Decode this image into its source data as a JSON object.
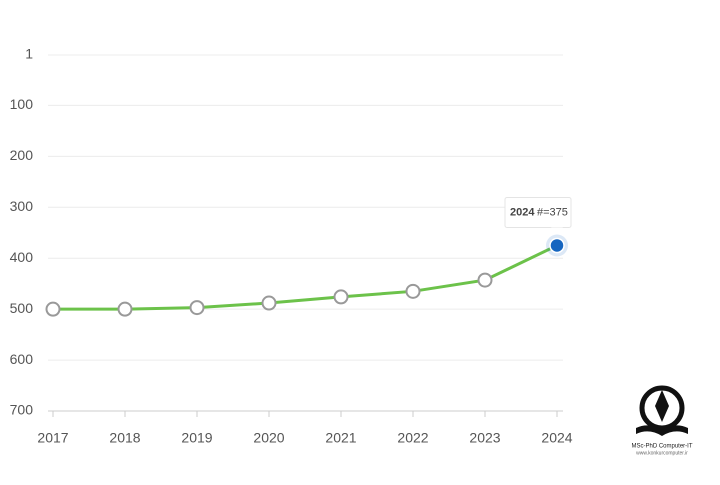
{
  "chart_data": {
    "type": "line",
    "categories": [
      "2017",
      "2018",
      "2019",
      "2020",
      "2021",
      "2022",
      "2023",
      "2024"
    ],
    "series": [
      {
        "color": "#6cc24a",
        "values": [
          500,
          500,
          497,
          488,
          476,
          465,
          443,
          375
        ],
        "value_labels": [
          null,
          null,
          null,
          null,
          null,
          null,
          null,
          "#=375"
        ]
      }
    ],
    "ylim": [
      700,
      1
    ],
    "yticks": [
      1,
      100,
      200,
      300,
      400,
      500,
      600,
      700
    ],
    "grid": true,
    "highlight_color": "#1565c0"
  },
  "watermark": {
    "title": "MSc-PhD Computer-IT",
    "url": "www.konkurcomputer.ir"
  }
}
